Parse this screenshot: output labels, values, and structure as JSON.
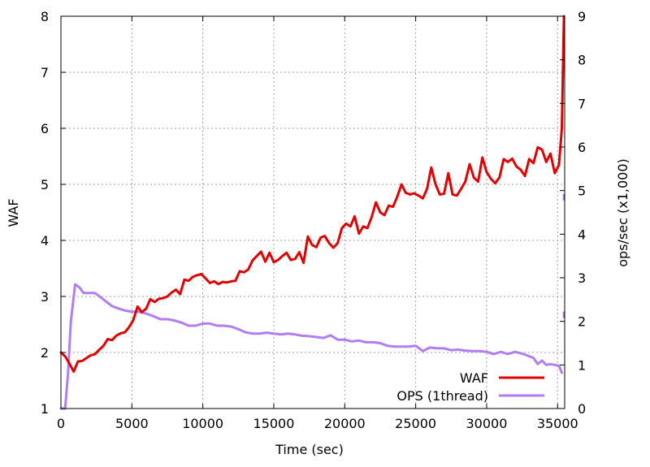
{
  "chart_data": {
    "type": "line",
    "xlabel": "Time (sec)",
    "ylabel": "WAF",
    "y2label": "ops/sec (x1,000)",
    "xlim": [
      0,
      35500
    ],
    "ylim": [
      1,
      8
    ],
    "y2lim": [
      0,
      9
    ],
    "xticks": [
      0,
      5000,
      10000,
      15000,
      20000,
      25000,
      30000,
      35000
    ],
    "yticks": [
      1,
      2,
      3,
      4,
      5,
      6,
      7,
      8
    ],
    "y2ticks": [
      0,
      1,
      2,
      3,
      4,
      5,
      6,
      7,
      8,
      9
    ],
    "grid": true,
    "legend_position": "bottom-right",
    "series": [
      {
        "name": "WAF",
        "axis": "y1",
        "color": "#e00000",
        "x": [
          0,
          300,
          600,
          900,
          1200,
          1500,
          1800,
          2100,
          2400,
          2700,
          3000,
          3300,
          3600,
          3900,
          4200,
          4500,
          4800,
          5100,
          5400,
          5700,
          6000,
          6300,
          6600,
          6900,
          7200,
          7500,
          7800,
          8100,
          8400,
          8700,
          9000,
          9300,
          9600,
          9900,
          10200,
          10500,
          10800,
          11100,
          11400,
          11700,
          12000,
          12300,
          12600,
          12900,
          13200,
          13500,
          13800,
          14100,
          14400,
          14700,
          15000,
          15300,
          15600,
          15900,
          16200,
          16500,
          16800,
          17100,
          17400,
          17700,
          18000,
          18300,
          18600,
          18900,
          19200,
          19500,
          19800,
          20100,
          20400,
          20700,
          21000,
          21300,
          21600,
          21900,
          22200,
          22500,
          22800,
          23100,
          23400,
          23700,
          24000,
          24300,
          24600,
          24900,
          25200,
          25500,
          25800,
          26100,
          26400,
          26700,
          27000,
          27300,
          27600,
          27900,
          28200,
          28500,
          28800,
          29100,
          29400,
          29700,
          30000,
          30300,
          30600,
          30900,
          31200,
          31500,
          31800,
          32100,
          32400,
          32700,
          33000,
          33300,
          33600,
          33900,
          34200,
          34500,
          34800,
          35100,
          35300,
          35450
        ],
        "values": [
          2.0,
          1.93,
          1.8,
          1.66,
          1.84,
          1.85,
          1.9,
          1.95,
          1.97,
          2.05,
          2.12,
          2.24,
          2.22,
          2.3,
          2.34,
          2.36,
          2.45,
          2.58,
          2.82,
          2.72,
          2.78,
          2.95,
          2.9,
          2.96,
          2.97,
          3.0,
          3.07,
          3.12,
          3.04,
          3.3,
          3.28,
          3.35,
          3.38,
          3.4,
          3.32,
          3.24,
          3.27,
          3.22,
          3.26,
          3.25,
          3.27,
          3.28,
          3.45,
          3.43,
          3.48,
          3.64,
          3.72,
          3.8,
          3.62,
          3.78,
          3.61,
          3.65,
          3.72,
          3.78,
          3.65,
          3.67,
          3.79,
          3.6,
          4.07,
          3.92,
          3.88,
          4.05,
          4.08,
          3.95,
          3.87,
          3.95,
          4.22,
          4.3,
          4.25,
          4.43,
          4.12,
          4.25,
          4.22,
          4.42,
          4.68,
          4.5,
          4.45,
          4.62,
          4.6,
          4.78,
          5.0,
          4.85,
          4.82,
          4.84,
          4.8,
          4.75,
          4.92,
          5.3,
          5.0,
          4.82,
          4.83,
          5.2,
          4.82,
          4.8,
          4.92,
          5.05,
          5.36,
          5.12,
          5.05,
          5.48,
          5.22,
          5.1,
          5.02,
          5.12,
          5.45,
          5.4,
          5.46,
          5.32,
          5.26,
          5.15,
          5.45,
          5.38,
          5.66,
          5.62,
          5.4,
          5.55,
          5.2,
          5.35,
          6.0,
          8.0
        ]
      },
      {
        "name": "OPS (1thread)",
        "axis": "y2",
        "color": "#b07ef0",
        "x": [
          0,
          300,
          500,
          700,
          1000,
          1300,
          1600,
          2000,
          2400,
          2800,
          3200,
          3600,
          4000,
          4500,
          5000,
          5500,
          6000,
          6500,
          7000,
          7500,
          8000,
          8500,
          9000,
          9500,
          10000,
          10500,
          11000,
          11500,
          12000,
          12500,
          13000,
          13500,
          14000,
          14500,
          15000,
          15500,
          16000,
          16500,
          17000,
          17500,
          18000,
          18500,
          19000,
          19500,
          20000,
          20500,
          21000,
          21500,
          22000,
          22500,
          23000,
          23500,
          24000,
          24500,
          25000,
          25500,
          26000,
          26500,
          27000,
          27500,
          28000,
          28500,
          29000,
          29500,
          30000,
          30500,
          31000,
          31500,
          32000,
          32500,
          33000,
          33300,
          33600,
          33900,
          34200,
          34500,
          34800,
          35100,
          35300
        ],
        "values": [
          0.0,
          0.0,
          0.8,
          2.0,
          2.85,
          2.78,
          2.65,
          2.65,
          2.65,
          2.55,
          2.45,
          2.35,
          2.3,
          2.25,
          2.22,
          2.22,
          2.18,
          2.12,
          2.05,
          2.05,
          2.02,
          1.97,
          1.9,
          1.9,
          1.95,
          1.95,
          1.9,
          1.9,
          1.88,
          1.82,
          1.75,
          1.72,
          1.72,
          1.74,
          1.72,
          1.7,
          1.72,
          1.7,
          1.67,
          1.66,
          1.64,
          1.62,
          1.68,
          1.58,
          1.58,
          1.54,
          1.56,
          1.52,
          1.52,
          1.5,
          1.44,
          1.42,
          1.42,
          1.42,
          1.44,
          1.32,
          1.4,
          1.38,
          1.38,
          1.34,
          1.35,
          1.33,
          1.32,
          1.32,
          1.3,
          1.25,
          1.3,
          1.25,
          1.3,
          1.26,
          1.2,
          1.16,
          1.02,
          1.1,
          1.0,
          1.02,
          1.0,
          0.98,
          0.82
        ]
      }
    ],
    "extra_marks": [
      {
        "series": "OPS (1thread)",
        "x": 35450,
        "y2": 4.85
      },
      {
        "series": "OPS (1thread)",
        "x": 35450,
        "y2": 2.15
      }
    ]
  }
}
